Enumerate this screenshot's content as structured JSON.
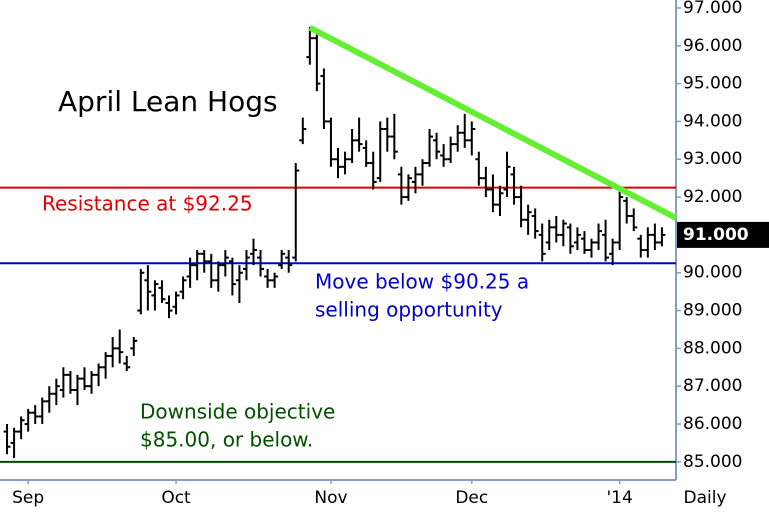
{
  "chart_data": {
    "type": "ohlc",
    "title": "April Lean Hogs",
    "color": "#000000",
    "open": [
      85.8,
      85.5,
      85.8,
      86.0,
      86.3,
      86.2,
      86.6,
      86.8,
      86.9,
      87.3,
      86.9,
      87.2,
      87.0,
      87.3,
      87.5,
      87.8,
      88.0,
      87.6,
      88.0,
      89.0,
      89.8,
      89.4,
      89.6,
      89.2,
      89.1,
      89.5,
      89.9,
      90.2,
      90.5,
      90.3,
      89.8,
      90.2,
      90.3,
      89.8,
      90.1,
      90.5,
      90.4,
      89.9,
      89.8,
      90.2,
      90.4,
      90.4,
      93.5,
      95.7,
      96.2,
      95.2,
      94.0,
      93.0,
      92.8,
      93.0,
      93.5,
      93.3,
      92.9,
      92.5,
      93.8,
      93.6,
      92.6,
      92.0,
      92.4,
      92.6,
      92.9,
      93.5,
      93.1,
      93.0,
      93.4,
      93.7,
      93.5,
      93.0,
      92.5,
      92.2,
      91.8,
      92.2,
      92.6,
      92.0,
      91.4,
      91.5,
      91.0,
      90.8,
      91.2,
      91.0,
      91.2,
      90.8,
      90.9,
      90.6,
      90.8,
      91.0,
      90.5,
      90.8,
      91.9,
      91.5,
      90.9,
      90.6,
      91.0,
      90.8
    ],
    "high": [
      86.0,
      85.9,
      86.2,
      86.4,
      86.5,
      86.7,
      87.0,
      87.2,
      87.5,
      87.4,
      87.3,
      87.5,
      87.4,
      87.6,
      87.9,
      88.3,
      88.5,
      87.8,
      88.3,
      90.1,
      90.2,
      89.8,
      89.8,
      89.4,
      89.5,
      89.9,
      90.4,
      90.6,
      90.6,
      90.5,
      90.3,
      90.6,
      90.4,
      90.2,
      90.6,
      90.9,
      90.6,
      90.1,
      90.0,
      90.6,
      90.6,
      92.9,
      94.1,
      96.5,
      96.4,
      95.4,
      94.1,
      93.3,
      93.2,
      93.8,
      94.1,
      93.5,
      93.2,
      94.0,
      94.1,
      94.2,
      92.8,
      92.6,
      92.8,
      93.0,
      93.8,
      93.7,
      93.4,
      93.6,
      93.9,
      94.2,
      94.0,
      93.2,
      92.8,
      92.6,
      92.3,
      93.2,
      92.8,
      92.3,
      91.8,
      91.7,
      91.3,
      91.4,
      91.5,
      91.4,
      91.3,
      91.2,
      91.1,
      90.9,
      91.3,
      91.4,
      90.9,
      92.3,
      92.0,
      91.7,
      91.0,
      91.2,
      91.3,
      91.2
    ],
    "low": [
      85.2,
      85.1,
      85.6,
      85.8,
      86.0,
      86.0,
      86.3,
      86.5,
      86.7,
      86.8,
      86.5,
      86.9,
      86.8,
      87.0,
      87.2,
      87.5,
      87.6,
      87.4,
      87.8,
      88.9,
      89.0,
      89.0,
      89.2,
      88.8,
      88.9,
      89.3,
      89.6,
      89.8,
      90.0,
      89.6,
      89.5,
      89.9,
      89.4,
      89.2,
      89.8,
      90.2,
      89.9,
      89.6,
      89.6,
      90.1,
      90.0,
      90.3,
      93.4,
      95.5,
      94.8,
      93.8,
      92.8,
      92.5,
      92.6,
      92.9,
      93.2,
      92.8,
      92.2,
      92.4,
      93.2,
      93.0,
      91.8,
      91.9,
      92.1,
      92.3,
      92.8,
      93.0,
      92.8,
      92.9,
      93.2,
      93.3,
      93.1,
      92.3,
      92.0,
      91.6,
      91.5,
      92.0,
      91.8,
      91.2,
      91.0,
      90.9,
      90.3,
      90.6,
      90.8,
      90.7,
      90.5,
      90.6,
      90.5,
      90.4,
      90.6,
      90.3,
      90.2,
      90.6,
      91.3,
      91.1,
      90.4,
      90.4,
      90.6,
      90.7
    ],
    "close": [
      85.4,
      85.8,
      86.1,
      86.3,
      86.2,
      86.6,
      86.8,
      87.0,
      87.3,
      86.9,
      87.2,
      87.0,
      87.3,
      87.5,
      87.8,
      88.0,
      87.9,
      87.5,
      88.2,
      90.0,
      89.5,
      89.7,
      89.3,
      89.0,
      89.4,
      89.8,
      90.2,
      90.5,
      90.3,
      89.8,
      90.2,
      90.4,
      89.7,
      90.0,
      90.4,
      90.6,
      90.1,
      89.8,
      89.9,
      90.5,
      90.2,
      92.7,
      93.8,
      96.2,
      95.0,
      94.0,
      93.0,
      92.8,
      93.0,
      93.5,
      93.4,
      92.9,
      92.4,
      93.8,
      93.6,
      93.2,
      92.0,
      92.5,
      92.6,
      92.9,
      93.6,
      93.2,
      93.0,
      93.4,
      93.7,
      93.5,
      93.8,
      92.5,
      92.2,
      91.8,
      92.1,
      92.8,
      92.0,
      91.4,
      91.6,
      91.1,
      90.5,
      91.2,
      91.0,
      91.3,
      90.7,
      91.0,
      90.6,
      90.8,
      91.1,
      90.4,
      90.8,
      92.0,
      91.5,
      91.2,
      90.6,
      91.0,
      90.8,
      91.0
    ],
    "xlim": [
      -1,
      95
    ],
    "xticks": [
      {
        "value": 3,
        "label": "Sep"
      },
      {
        "value": 24,
        "label": "Oct"
      },
      {
        "value": 46,
        "label": "Nov"
      },
      {
        "value": 66,
        "label": "Dec"
      },
      {
        "value": 87,
        "label": "'14"
      }
    ],
    "x_axis_label": "Daily",
    "ylim": [
      84.52,
      97.21
    ],
    "yticks": [
      {
        "value": 85,
        "label": "85.000"
      },
      {
        "value": 86,
        "label": "86.000"
      },
      {
        "value": 87,
        "label": "87.000"
      },
      {
        "value": 88,
        "label": "88.000"
      },
      {
        "value": 89,
        "label": "89.000"
      },
      {
        "value": 90,
        "label": "90.000"
      },
      {
        "value": 91,
        "label": "91.000"
      },
      {
        "value": 92,
        "label": "92.000"
      },
      {
        "value": 93,
        "label": "93.000"
      },
      {
        "value": 94,
        "label": "94.000"
      },
      {
        "value": 95,
        "label": "95.000"
      },
      {
        "value": 96,
        "label": "96.000"
      },
      {
        "value": 97,
        "label": "97.000"
      }
    ],
    "last_price": {
      "value": 91.0,
      "label": "91.000"
    },
    "hlines": [
      {
        "value": 92.25,
        "color": "#e00000"
      },
      {
        "value": 90.25,
        "color": "#0000cc"
      },
      {
        "value": 85.0,
        "color": "#005000"
      }
    ],
    "trendline": {
      "x": [
        43,
        95
      ],
      "y": [
        96.48,
        91.45
      ],
      "color": "#66ee33"
    },
    "annotations": [
      {
        "lines": [
          "Resistance at $92.25"
        ],
        "color": "#e00000"
      },
      {
        "lines": [
          "Move below $90.25 a",
          "selling opportunity"
        ],
        "color": "#0000cc"
      },
      {
        "lines": [
          "Downside objective",
          "$85.00, or below."
        ],
        "color": "#005000"
      }
    ]
  }
}
